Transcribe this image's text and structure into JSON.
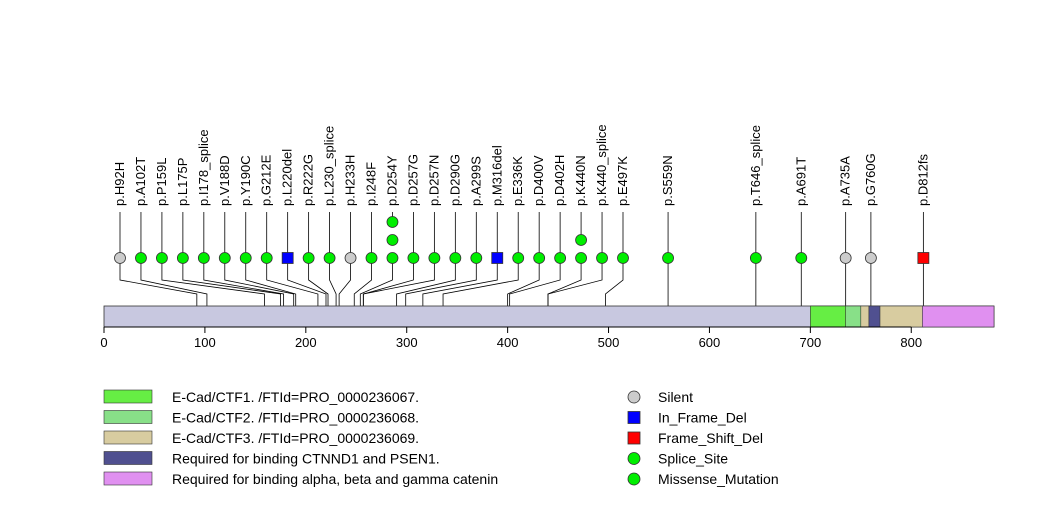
{
  "chart_data": {
    "type": "lollipop",
    "protein_length": 882,
    "x_axis": {
      "range": [
        0,
        882
      ],
      "ticks": [
        0,
        100,
        200,
        300,
        400,
        500,
        600,
        700,
        800
      ]
    },
    "colors": {
      "backbone": "#c8c8e0",
      "Silent": "#cccccc",
      "In_Frame_Del": "#0000ff",
      "Frame_Shift_Del": "#ff0000",
      "Splice_Site": "#00ee00",
      "Missense_Mutation": "#00ee00"
    },
    "regions": [
      {
        "name": "E-Cad/CTF1. /FTId=PRO_0000236067.",
        "start": 700,
        "end": 750,
        "color": "#66ee44"
      },
      {
        "name": "E-Cad/CTF2. /FTId=PRO_0000236068.",
        "start": 735,
        "end": 750,
        "color": "#88e088"
      },
      {
        "name": "E-Cad/CTF3. /FTId=PRO_0000236069.",
        "start": 750,
        "end": 812,
        "color": "#d8cca0"
      },
      {
        "name": "Required for binding CTNND1 and PSEN1.",
        "start": 758,
        "end": 769,
        "color": "#505090"
      },
      {
        "name": "Required for binding alpha, beta and gamma catenin",
        "start": 811,
        "end": 882,
        "color": "#e090f0"
      }
    ],
    "mutations": [
      {
        "label": "p.H92H",
        "position": 92,
        "type": "Silent",
        "count": 1
      },
      {
        "label": "p.A102T",
        "position": 102,
        "type": "Missense_Mutation",
        "count": 1
      },
      {
        "label": "p.P159L",
        "position": 159,
        "type": "Missense_Mutation",
        "count": 1
      },
      {
        "label": "p.L175P",
        "position": 175,
        "type": "Missense_Mutation",
        "count": 1
      },
      {
        "label": "p.I178_splice",
        "position": 178,
        "type": "Splice_Site",
        "count": 1
      },
      {
        "label": "p.V188D",
        "position": 188,
        "type": "Missense_Mutation",
        "count": 1
      },
      {
        "label": "p.Y190C",
        "position": 190,
        "type": "Missense_Mutation",
        "count": 1
      },
      {
        "label": "p.G212E",
        "position": 212,
        "type": "Missense_Mutation",
        "count": 1
      },
      {
        "label": "p.L220del",
        "position": 220,
        "type": "In_Frame_Del",
        "count": 1
      },
      {
        "label": "p.R222G",
        "position": 222,
        "type": "Missense_Mutation",
        "count": 1
      },
      {
        "label": "p.L230_splice",
        "position": 230,
        "type": "Splice_Site",
        "count": 1
      },
      {
        "label": "p.H233H",
        "position": 233,
        "type": "Silent",
        "count": 1
      },
      {
        "label": "p.I248F",
        "position": 248,
        "type": "Missense_Mutation",
        "count": 1
      },
      {
        "label": "p.D254Y",
        "position": 254,
        "type": "Missense_Mutation",
        "count": 3
      },
      {
        "label": "p.D257G",
        "position": 257,
        "type": "Missense_Mutation",
        "count": 1
      },
      {
        "label": "p.D257N",
        "position": 257,
        "type": "Missense_Mutation",
        "count": 1
      },
      {
        "label": "p.D290G",
        "position": 290,
        "type": "Missense_Mutation",
        "count": 1
      },
      {
        "label": "p.A299S",
        "position": 299,
        "type": "Missense_Mutation",
        "count": 1
      },
      {
        "label": "p.M316del",
        "position": 316,
        "type": "In_Frame_Del",
        "count": 1
      },
      {
        "label": "p.E336K",
        "position": 336,
        "type": "Missense_Mutation",
        "count": 1
      },
      {
        "label": "p.D400V",
        "position": 400,
        "type": "Missense_Mutation",
        "count": 1
      },
      {
        "label": "p.D402H",
        "position": 402,
        "type": "Missense_Mutation",
        "count": 1
      },
      {
        "label": "p.K440N",
        "position": 440,
        "type": "Missense_Mutation",
        "count": 2
      },
      {
        "label": "p.K440_splice",
        "position": 440,
        "type": "Splice_Site",
        "count": 1
      },
      {
        "label": "p.E497K",
        "position": 497,
        "type": "Missense_Mutation",
        "count": 1
      },
      {
        "label": "p.S559N",
        "position": 559,
        "type": "Missense_Mutation",
        "count": 1
      },
      {
        "label": "p.T646_splice",
        "position": 646,
        "type": "Splice_Site",
        "count": 1
      },
      {
        "label": "p.A691T",
        "position": 691,
        "type": "Missense_Mutation",
        "count": 1
      },
      {
        "label": "p.A735A",
        "position": 735,
        "type": "Silent",
        "count": 1
      },
      {
        "label": "p.G760G",
        "position": 760,
        "type": "Silent",
        "count": 1
      },
      {
        "label": "p.D812fs",
        "position": 812,
        "type": "Frame_Shift_Del",
        "count": 1
      }
    ],
    "legend": {
      "regions": [
        "E-Cad/CTF1. /FTId=PRO_0000236067.",
        "E-Cad/CTF2. /FTId=PRO_0000236068.",
        "E-Cad/CTF3. /FTId=PRO_0000236069.",
        "Required for binding CTNND1 and PSEN1.",
        "Required for binding alpha, beta and gamma catenin"
      ],
      "mutation_types": [
        "Silent",
        "In_Frame_Del",
        "Frame_Shift_Del",
        "Splice_Site",
        "Missense_Mutation"
      ]
    }
  }
}
